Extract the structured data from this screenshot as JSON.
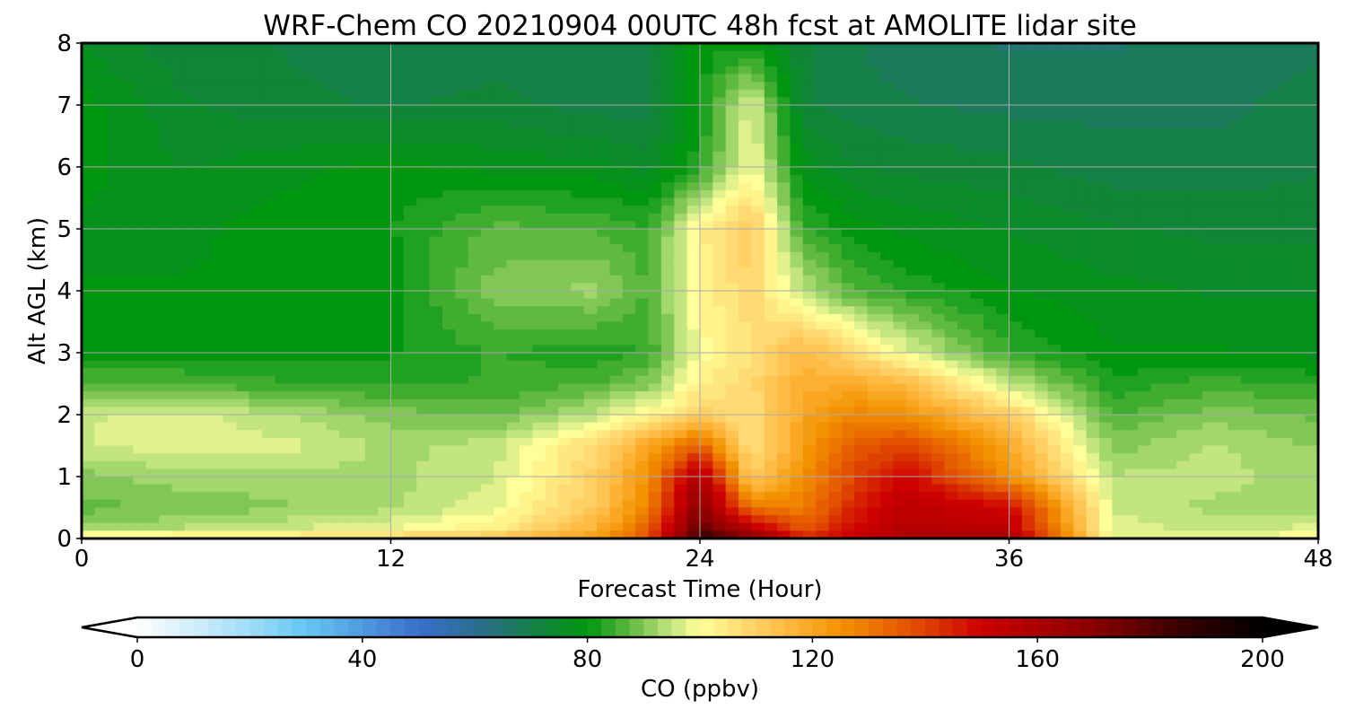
{
  "chart_data": {
    "type": "heatmap",
    "title": "WRF-Chem CO  20210904 00UTC 48h fcst at AMOLITE lidar site",
    "xlabel": "Forecast Time (Hour)",
    "ylabel": "Alt AGL (km)",
    "xlim": [
      0,
      48
    ],
    "ylim": [
      0,
      8
    ],
    "x_ticks": [
      0,
      12,
      24,
      36,
      48
    ],
    "y_ticks": [
      0,
      1,
      2,
      3,
      4,
      5,
      6,
      7,
      8
    ],
    "grid": true,
    "x_hours": [
      0,
      4,
      8,
      12,
      16,
      20,
      22,
      24,
      26,
      28,
      30,
      32,
      36,
      40,
      44,
      48
    ],
    "z_km": [
      0,
      0.1,
      0.5,
      1,
      1.5,
      2,
      2.5,
      3,
      4,
      5,
      6,
      7,
      8
    ],
    "values": [
      [
        112,
        112,
        114,
        116,
        118,
        125,
        140,
        190,
        175,
        150,
        155,
        160,
        165,
        100,
        98,
        105
      ],
      [
        92,
        95,
        97,
        100,
        104,
        118,
        135,
        180,
        160,
        138,
        150,
        158,
        155,
        98,
        95,
        98
      ],
      [
        88,
        89,
        91,
        93,
        98,
        112,
        128,
        170,
        130,
        128,
        145,
        155,
        150,
        96,
        93,
        92
      ],
      [
        90,
        93,
        93,
        93,
        96,
        110,
        125,
        160,
        110,
        125,
        140,
        150,
        125,
        94,
        95,
        92
      ],
      [
        96,
        98,
        97,
        93,
        95,
        108,
        120,
        135,
        105,
        122,
        135,
        140,
        120,
        90,
        94,
        91
      ],
      [
        96,
        97,
        94,
        90,
        88,
        95,
        102,
        110,
        106,
        120,
        128,
        125,
        110,
        86,
        90,
        88
      ],
      [
        86,
        86,
        84,
        83,
        84,
        86,
        90,
        103,
        108,
        118,
        118,
        115,
        95,
        82,
        85,
        83
      ],
      [
        80,
        80,
        80,
        81,
        84,
        82,
        84,
        100,
        106,
        116,
        108,
        98,
        84,
        79,
        79,
        78
      ],
      [
        79,
        79,
        80,
        80,
        90,
        92,
        86,
        102,
        108,
        95,
        86,
        83,
        79,
        77,
        76,
        76
      ],
      [
        78,
        78,
        80,
        81,
        87,
        86,
        84,
        103,
        112,
        84,
        80,
        78,
        76,
        74,
        73,
        73
      ],
      [
        80,
        76,
        78,
        80,
        78,
        77,
        75,
        83,
        100,
        78,
        74,
        73,
        72,
        70,
        70,
        71
      ],
      [
        80,
        74,
        72,
        71,
        72,
        70,
        70,
        80,
        98,
        72,
        70,
        69,
        68,
        68,
        68,
        70
      ],
      [
        76,
        72,
        71,
        69,
        70,
        70,
        71,
        80,
        80,
        72,
        69,
        67,
        66,
        66,
        67,
        68
      ]
    ],
    "colorbar": {
      "label": "CO  (ppbv)",
      "min": 0,
      "max": 200,
      "ticks": [
        0,
        40,
        80,
        120,
        160,
        200
      ],
      "extend": "both",
      "color_stops": [
        {
          "value": 0,
          "color": "#ffffff"
        },
        {
          "value": 20,
          "color": "#9fdcf6"
        },
        {
          "value": 30,
          "color": "#66c6f2"
        },
        {
          "value": 50,
          "color": "#3a6fcc"
        },
        {
          "value": 62,
          "color": "#2a6e86"
        },
        {
          "value": 72,
          "color": "#11843a"
        },
        {
          "value": 80,
          "color": "#00960f"
        },
        {
          "value": 88,
          "color": "#66bb44"
        },
        {
          "value": 94,
          "color": "#b6e07a"
        },
        {
          "value": 100,
          "color": "#ffff99"
        },
        {
          "value": 108,
          "color": "#ffd870"
        },
        {
          "value": 115,
          "color": "#ffbb44"
        },
        {
          "value": 125,
          "color": "#f39200"
        },
        {
          "value": 138,
          "color": "#e24f00"
        },
        {
          "value": 150,
          "color": "#cc0000"
        },
        {
          "value": 170,
          "color": "#8a0000"
        },
        {
          "value": 185,
          "color": "#3a0000"
        },
        {
          "value": 200,
          "color": "#000000"
        }
      ]
    },
    "grid_color": "#aaaaaa"
  }
}
